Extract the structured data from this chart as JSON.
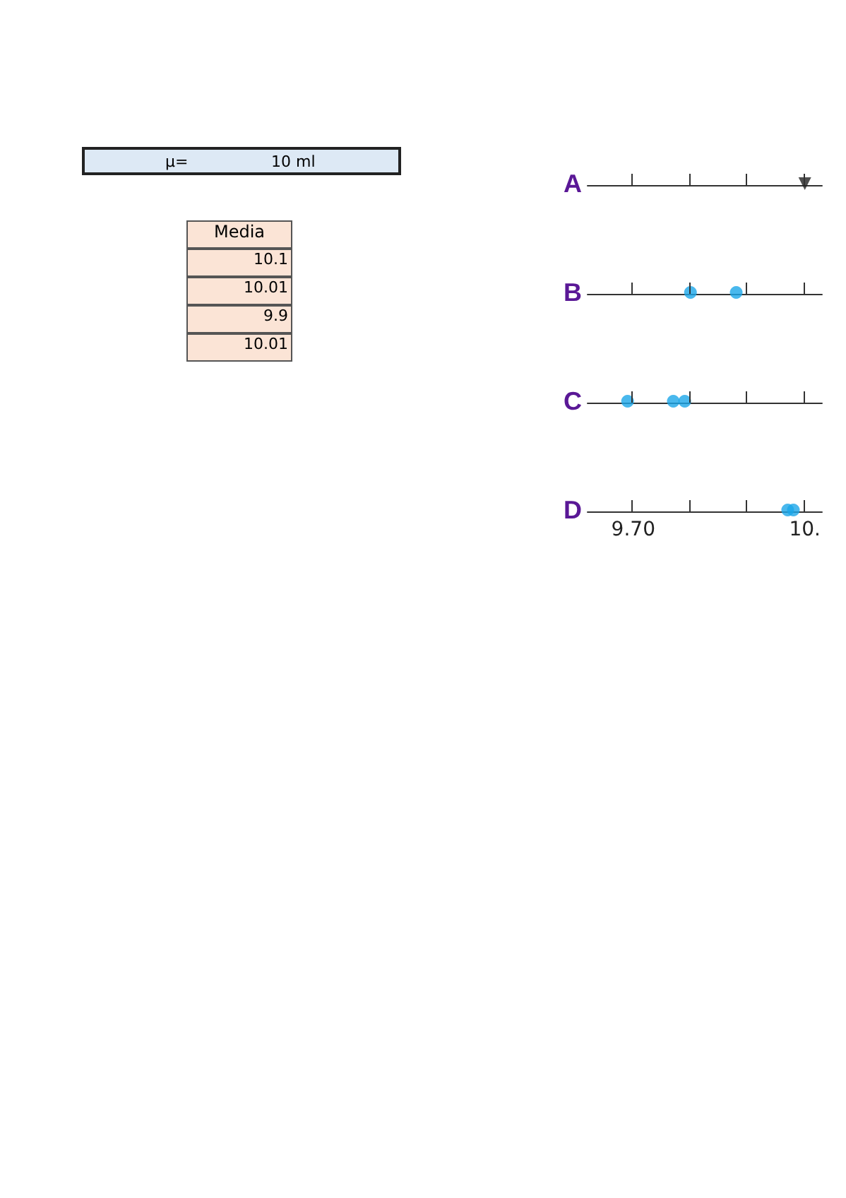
{
  "chart_data": [
    {
      "type": "other",
      "annotations": [
        "μ=",
        "10 ml",
        "Media",
        "10.1",
        "10.01",
        "9.9",
        "10.01"
      ]
    },
    {
      "type": "scatter",
      "orientation": "horizontal",
      "categories": [
        "A",
        "B",
        "C",
        "D"
      ],
      "xlim": [
        9.62,
        10.03
      ],
      "xticks": [
        {
          "value": 9.7,
          "label": "9.70"
        },
        {
          "value": 9.8,
          "label": null
        },
        {
          "value": 9.9,
          "label": null
        },
        {
          "value": 10.0,
          "label": "10."
        }
      ],
      "series": [
        {
          "color": "#1ba6e8",
          "marker": "circle",
          "x": [
            "B",
            "B",
            "C",
            "C",
            "C",
            "D",
            "D"
          ],
          "values": [
            9.8,
            9.88,
            9.69,
            9.77,
            9.79,
            9.97,
            9.98
          ]
        },
        {
          "color": "#222222",
          "marker": "triangle",
          "x": [
            "A"
          ],
          "values": [
            10.0
          ]
        }
      ]
    }
  ]
}
